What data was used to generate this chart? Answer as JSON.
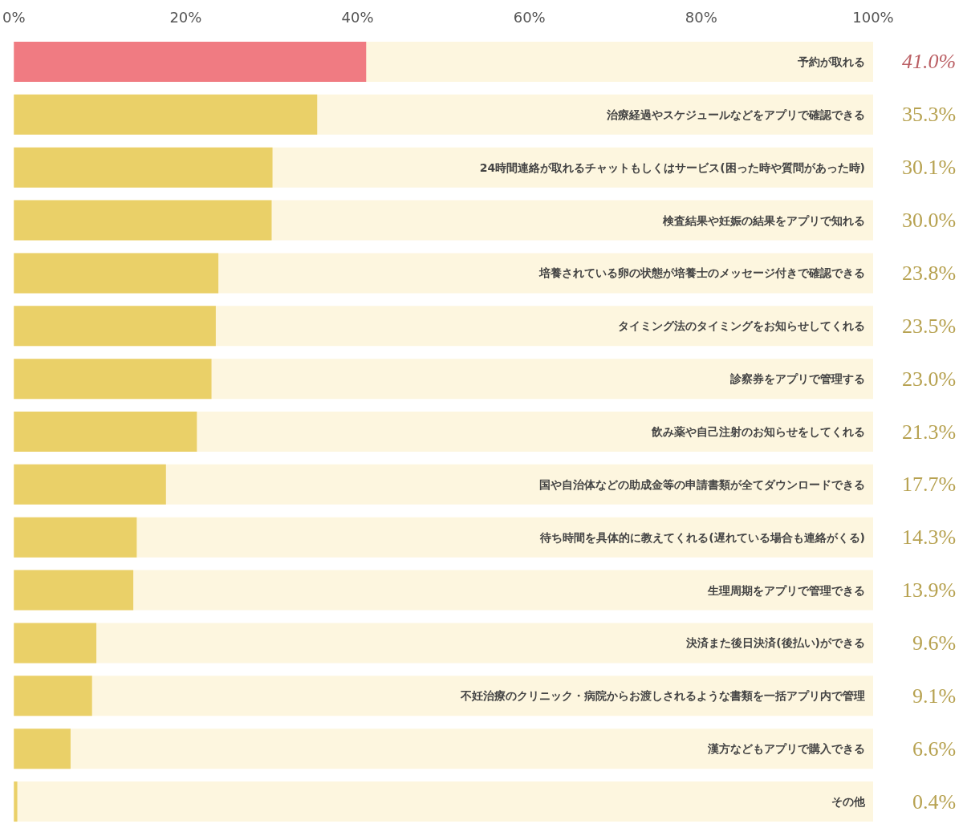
{
  "chart_data": {
    "type": "bar",
    "orientation": "horizontal",
    "categories": [
      "予約が取れる",
      "治療経過やスケジュールなどをアプリで確認できる",
      "24時間連絡が取れるチャットもしくはサービス(困った時や質問があった時)",
      "検査結果や妊娠の結果をアプリで知れる",
      "培養されている卵の状態が培養士のメッセージ付きで確認できる",
      "タイミング法のタイミングをお知らせしてくれる",
      "診察券をアプリで管理する",
      "飲み薬や自己注射のお知らせをしてくれる",
      "国や自治体などの助成金等の申請書類が全てダウンロードできる",
      "待ち時間を具体的に教えてくれる(遅れている場合も連絡がくる)",
      "生理周期をアプリで管理できる",
      "決済また後日決済(後払い)ができる",
      "不妊治療のクリニック・病院からお渡しされるような書類を一括アプリ内で管理",
      "漢方などもアプリで購入できる",
      "その他"
    ],
    "values": [
      41.0,
      35.3,
      30.1,
      30.0,
      23.8,
      23.5,
      23.0,
      21.3,
      17.7,
      14.3,
      13.9,
      9.6,
      9.1,
      6.6,
      0.4
    ],
    "value_labels": [
      "41.0%",
      "35.3%",
      "30.1%",
      "30.0%",
      "23.8%",
      "23.5%",
      "23.0%",
      "21.3%",
      "17.7%",
      "14.3%",
      "13.9%",
      "9.6%",
      "9.1%",
      "6.6%",
      "0.4%"
    ],
    "colors": [
      "#f07b82",
      "#ead068",
      "#ead068",
      "#ead068",
      "#ead068",
      "#ead068",
      "#ead068",
      "#ead068",
      "#ead068",
      "#ead068",
      "#ead068",
      "#ead068",
      "#ead068",
      "#ead068",
      "#ead068"
    ],
    "xlim": [
      0,
      100
    ],
    "xticks": [
      {
        "value": 0,
        "label": "0%"
      },
      {
        "value": 20,
        "label": "20%"
      },
      {
        "value": 40,
        "label": "40%"
      },
      {
        "value": 60,
        "label": "60%"
      },
      {
        "value": 80,
        "label": "80%"
      },
      {
        "value": 100,
        "label": "100%"
      }
    ],
    "grid": false
  }
}
